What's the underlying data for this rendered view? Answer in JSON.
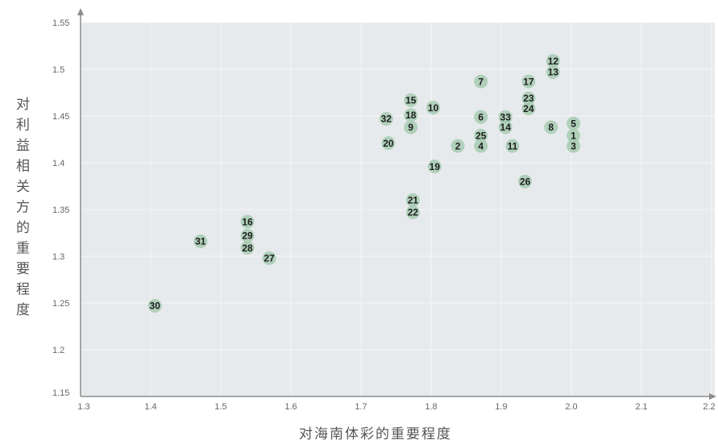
{
  "chart_data": {
    "type": "scatter",
    "xlabel": "对海南体彩的重要程度",
    "ylabel": "对利益相关方的重要程度",
    "xlim": [
      1.3,
      2.2
    ],
    "ylim": [
      1.15,
      1.55
    ],
    "x_ticks": [
      "1.3",
      "1.4",
      "1.5",
      "1.6",
      "1.7",
      "1.8",
      "1.9",
      "2.0",
      "2.1",
      "2.2"
    ],
    "y_ticks": [
      "1.15",
      "1.2",
      "1.25",
      "1.3",
      "1.35",
      "1.4",
      "1.45",
      "1.5",
      "1.55"
    ],
    "grid": true,
    "legend": "none",
    "points": [
      {
        "label": "1",
        "x": 2.003,
        "y": 1.429
      },
      {
        "label": "2",
        "x": 1.838,
        "y": 1.418
      },
      {
        "label": "3",
        "x": 2.003,
        "y": 1.418
      },
      {
        "label": "4",
        "x": 1.871,
        "y": 1.418
      },
      {
        "label": "5",
        "x": 2.003,
        "y": 1.442
      },
      {
        "label": "6",
        "x": 1.871,
        "y": 1.449
      },
      {
        "label": "7",
        "x": 1.871,
        "y": 1.487
      },
      {
        "label": "8",
        "x": 1.971,
        "y": 1.438
      },
      {
        "label": "9",
        "x": 1.771,
        "y": 1.438
      },
      {
        "label": "10",
        "x": 1.803,
        "y": 1.459
      },
      {
        "label": "11",
        "x": 1.916,
        "y": 1.418
      },
      {
        "label": "12",
        "x": 1.974,
        "y": 1.509
      },
      {
        "label": "13",
        "x": 1.974,
        "y": 1.497
      },
      {
        "label": "14",
        "x": 1.906,
        "y": 1.438
      },
      {
        "label": "15",
        "x": 1.771,
        "y": 1.467
      },
      {
        "label": "16",
        "x": 1.538,
        "y": 1.337
      },
      {
        "label": "17",
        "x": 1.939,
        "y": 1.487
      },
      {
        "label": "18",
        "x": 1.771,
        "y": 1.451
      },
      {
        "label": "19",
        "x": 1.805,
        "y": 1.396
      },
      {
        "label": "20",
        "x": 1.739,
        "y": 1.421
      },
      {
        "label": "21",
        "x": 1.774,
        "y": 1.36
      },
      {
        "label": "22",
        "x": 1.774,
        "y": 1.347
      },
      {
        "label": "23",
        "x": 1.939,
        "y": 1.469
      },
      {
        "label": "24",
        "x": 1.939,
        "y": 1.458
      },
      {
        "label": "25",
        "x": 1.871,
        "y": 1.429
      },
      {
        "label": "26",
        "x": 1.934,
        "y": 1.38
      },
      {
        "label": "27",
        "x": 1.569,
        "y": 1.298
      },
      {
        "label": "28",
        "x": 1.538,
        "y": 1.309
      },
      {
        "label": "29",
        "x": 1.538,
        "y": 1.322
      },
      {
        "label": "30",
        "x": 1.406,
        "y": 1.247
      },
      {
        "label": "31",
        "x": 1.471,
        "y": 1.316
      },
      {
        "label": "32",
        "x": 1.736,
        "y": 1.447
      },
      {
        "label": "33",
        "x": 1.906,
        "y": 1.449
      }
    ]
  },
  "colors": {
    "plot_background": "#e7eaed",
    "gridline": "#f5f6f8",
    "axis": "#8c8c8c",
    "point_fill": "#a6cbb0",
    "point_label": "#1e1e1e",
    "tick_label": "#666666"
  }
}
